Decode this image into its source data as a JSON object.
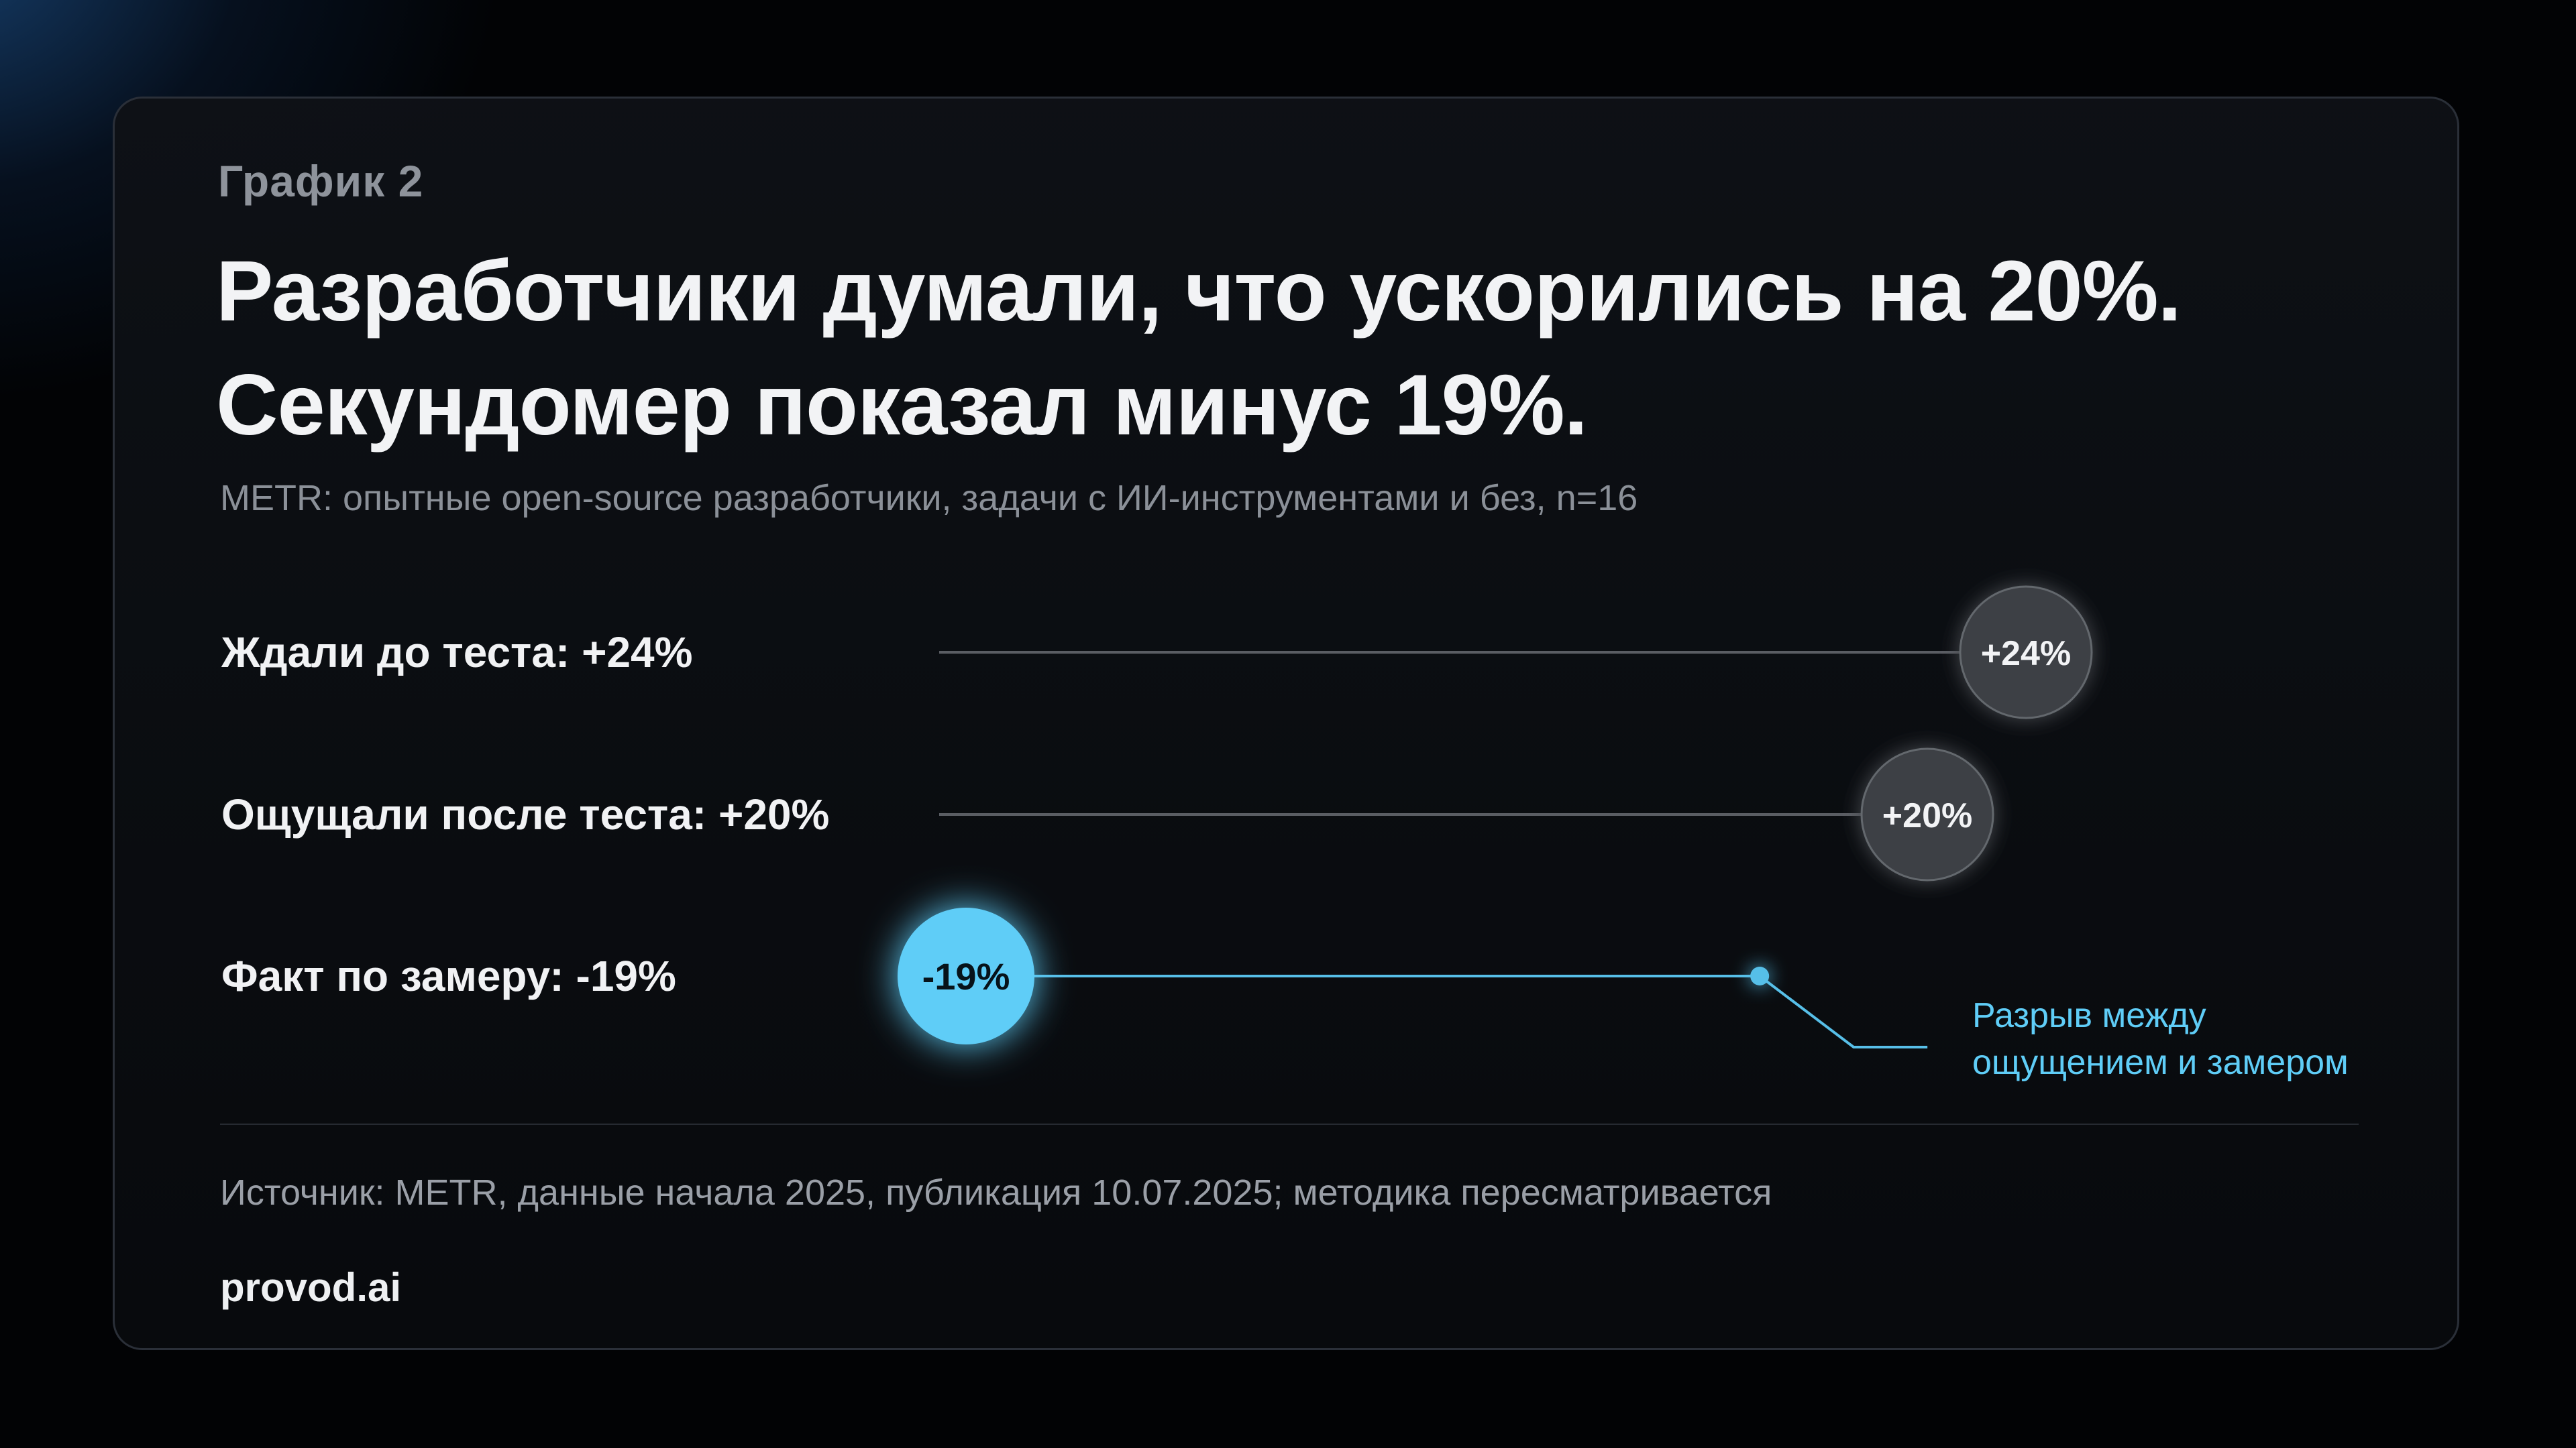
{
  "eyebrow": "График 2",
  "title_line1": "Разработчики думали, что ускорились на 20%.",
  "title_line2": "Секундомер показал минус 19%.",
  "subtitle": "METR: опытные open-source разработчики, задачи с ИИ-инструментами и без, n=16",
  "source": "Источник: METR, данные начала 2025, публикация 10.07.2025; методика пересматривается",
  "brand": "provod.ai",
  "colors": {
    "neutral_marker": "#3d3f44",
    "accent_marker": "#5fcdf7",
    "accent_line": "#57bfe8",
    "neutral_line": "#5a5d63"
  },
  "chart_data": {
    "type": "dot",
    "rows": [
      {
        "label": "Ждали до теста:  +24%",
        "value": 24,
        "marker_label": "+24%",
        "highlight": false
      },
      {
        "label": "Ощущали после теста:  +20%",
        "value": 20,
        "marker_label": "+20%",
        "highlight": false
      },
      {
        "label": "Факт по замеру:  -19%",
        "value": -19,
        "marker_label": "-19%",
        "highlight": true
      }
    ],
    "xlim": [
      -19,
      24
    ],
    "gap_reference_value": 13.2,
    "annotation_line1": "Разрыв между",
    "annotation_line2": "ощущением и замером"
  }
}
